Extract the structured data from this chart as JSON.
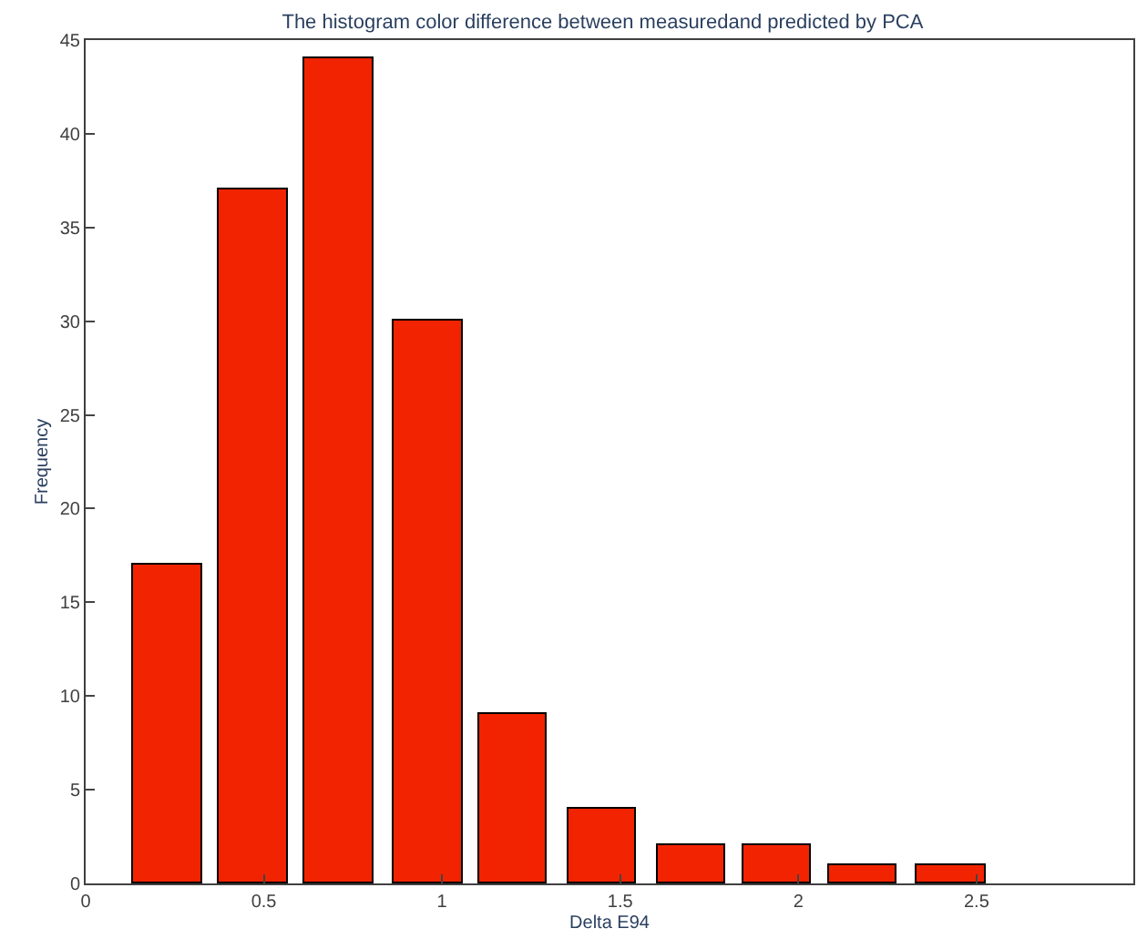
{
  "chart_data": {
    "type": "bar",
    "title": "The histogram color difference between measuredand predicted by PCA",
    "xlabel": "Delta E94",
    "ylabel": "Frequency",
    "x": [
      0.23,
      0.47,
      0.71,
      0.96,
      1.2,
      1.45,
      1.7,
      1.94,
      2.18,
      2.43
    ],
    "values": [
      17,
      37,
      44,
      30,
      9,
      4,
      2,
      2,
      1,
      1
    ],
    "color": "#f22300",
    "xlim": [
      0,
      2.94
    ],
    "xticks": [
      0,
      0.5,
      1,
      1.5,
      2,
      2.5
    ],
    "ylim": [
      0,
      45
    ],
    "yticks": [
      0,
      5,
      10,
      15,
      20,
      25,
      30,
      35,
      40,
      45
    ]
  }
}
